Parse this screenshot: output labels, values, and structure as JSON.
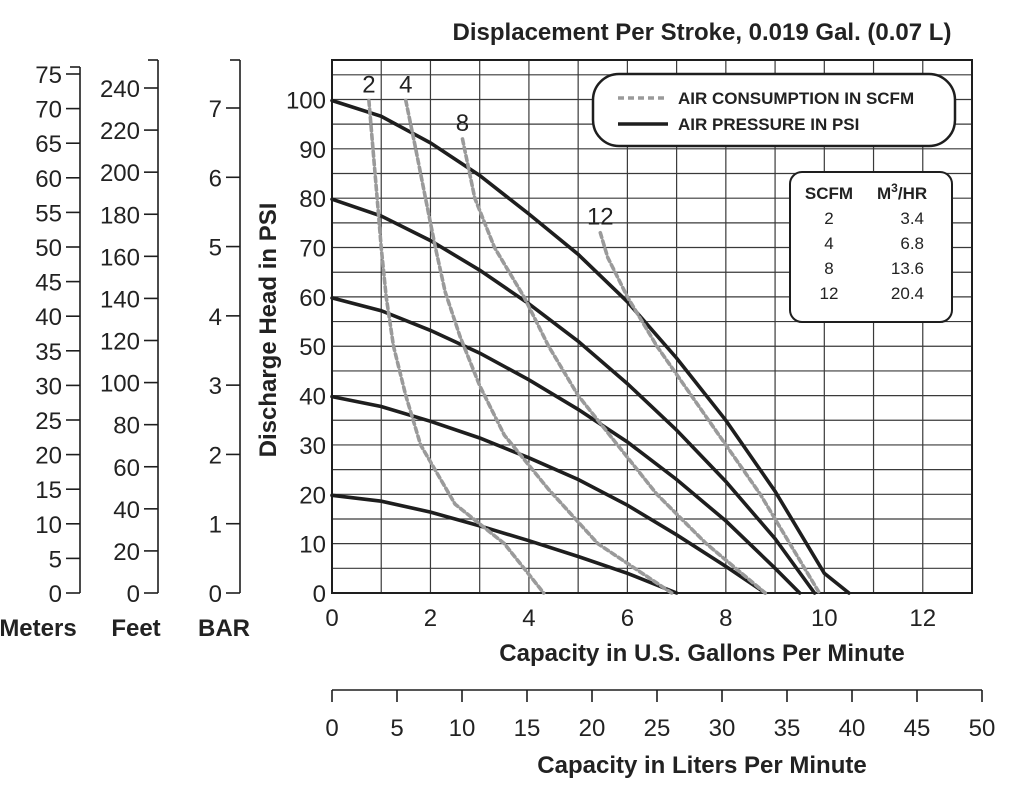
{
  "chart_data": {
    "type": "line",
    "title": "Displacement Per Stroke, 0.019 Gal. (0.07 L)",
    "xlabel": "Capacity in U.S. Gallons Per Minute",
    "ylabel": "Discharge Head in PSI",
    "xlim": [
      0,
      13
    ],
    "ylim": [
      0,
      108
    ],
    "x_ticks": [
      "0",
      "2",
      "4",
      "6",
      "8",
      "10",
      "12"
    ],
    "y_ticks": [
      "0",
      "10",
      "20",
      "30",
      "40",
      "50",
      "60",
      "70",
      "80",
      "90",
      "100"
    ],
    "grid": true,
    "series": [
      {
        "name": "20",
        "kind": "air-pressure",
        "label": "",
        "points": [
          [
            0,
            19.8
          ],
          [
            1,
            18.6
          ],
          [
            2,
            16.4
          ],
          [
            3,
            13.6
          ],
          [
            4,
            10.6
          ],
          [
            5,
            7.4
          ],
          [
            6,
            4
          ],
          [
            7,
            0
          ]
        ]
      },
      {
        "name": "40",
        "kind": "air-pressure",
        "label": "",
        "points": [
          [
            0,
            39.8
          ],
          [
            1,
            37.8
          ],
          [
            2,
            34.8
          ],
          [
            3,
            31.4
          ],
          [
            4,
            27.4
          ],
          [
            5,
            23
          ],
          [
            6,
            17.8
          ],
          [
            7,
            11.8
          ],
          [
            8,
            5.4
          ],
          [
            8.8,
            0
          ]
        ]
      },
      {
        "name": "60",
        "kind": "air-pressure",
        "label": "",
        "points": [
          [
            0,
            59.8
          ],
          [
            1,
            57.2
          ],
          [
            2,
            53.2
          ],
          [
            3,
            48.6
          ],
          [
            4,
            43.2
          ],
          [
            5,
            37.2
          ],
          [
            6,
            30.6
          ],
          [
            7,
            23
          ],
          [
            8,
            14.6
          ],
          [
            9,
            5
          ],
          [
            9.5,
            0
          ]
        ]
      },
      {
        "name": "80",
        "kind": "air-pressure",
        "label": "",
        "points": [
          [
            0,
            79.8
          ],
          [
            1,
            76.4
          ],
          [
            2,
            71.4
          ],
          [
            3,
            65.4
          ],
          [
            4,
            58.6
          ],
          [
            5,
            51
          ],
          [
            6,
            42.4
          ],
          [
            7,
            33
          ],
          [
            8,
            22.6
          ],
          [
            9,
            11
          ],
          [
            9.8,
            0
          ]
        ]
      },
      {
        "name": "100",
        "kind": "air-pressure",
        "label": "",
        "points": [
          [
            0,
            99.8
          ],
          [
            1,
            96.6
          ],
          [
            2,
            91.2
          ],
          [
            3,
            84.6
          ],
          [
            4,
            76.8
          ],
          [
            5,
            68.6
          ],
          [
            6,
            59
          ],
          [
            7,
            47.6
          ],
          [
            8,
            35
          ],
          [
            9,
            20.6
          ],
          [
            10,
            4
          ],
          [
            10.5,
            0
          ]
        ]
      },
      {
        "name": "2",
        "kind": "air-consumption",
        "label": "2",
        "points": [
          [
            0.75,
            99.8
          ],
          [
            0.85,
            88
          ],
          [
            0.95,
            76
          ],
          [
            1.0,
            70
          ],
          [
            1.1,
            60
          ],
          [
            1.25,
            50
          ],
          [
            1.5,
            40
          ],
          [
            1.8,
            30
          ],
          [
            2.5,
            18
          ],
          [
            3.5,
            10
          ],
          [
            4.3,
            0
          ]
        ]
      },
      {
        "name": "4",
        "kind": "air-consumption",
        "label": "4",
        "points": [
          [
            1.5,
            99.8
          ],
          [
            1.7,
            90
          ],
          [
            1.9,
            80
          ],
          [
            2.1,
            70
          ],
          [
            2.3,
            61
          ],
          [
            2.6,
            52
          ],
          [
            3.0,
            42
          ],
          [
            3.5,
            32
          ],
          [
            4.4,
            21
          ],
          [
            5.4,
            10
          ],
          [
            6.9,
            0
          ]
        ]
      },
      {
        "name": "8",
        "kind": "air-consumption",
        "label": "8",
        "points": [
          [
            2.65,
            92
          ],
          [
            2.9,
            80
          ],
          [
            3.3,
            70
          ],
          [
            3.9,
            60
          ],
          [
            4.4,
            50
          ],
          [
            5.0,
            40
          ],
          [
            5.8,
            30
          ],
          [
            6.6,
            20
          ],
          [
            7.6,
            10
          ],
          [
            8.8,
            0
          ]
        ]
      },
      {
        "name": "12",
        "kind": "air-consumption",
        "label": "12",
        "points": [
          [
            5.45,
            73
          ],
          [
            5.6,
            68
          ],
          [
            6.0,
            60
          ],
          [
            6.6,
            50
          ],
          [
            7.3,
            40
          ],
          [
            8.0,
            30
          ],
          [
            8.7,
            20
          ],
          [
            9.3,
            10
          ],
          [
            9.9,
            0
          ]
        ]
      }
    ],
    "left_scales": [
      {
        "unit": "Meters",
        "max": 75,
        "step": 5,
        "labels": [
          "0",
          "5",
          "10",
          "15",
          "20",
          "25",
          "30",
          "35",
          "40",
          "45",
          "50",
          "55",
          "60",
          "65",
          "70",
          "75"
        ]
      },
      {
        "unit": "Feet",
        "max": 240,
        "step": 20,
        "labels": [
          "0",
          "20",
          "40",
          "60",
          "80",
          "100",
          "120",
          "140",
          "160",
          "180",
          "200",
          "220",
          "240"
        ]
      },
      {
        "unit": "BAR",
        "max": 7,
        "step": 1,
        "labels": [
          "0",
          "1",
          "2",
          "3",
          "4",
          "5",
          "6",
          "7"
        ]
      }
    ],
    "secondary_x": {
      "label": "Capacity in Liters Per Minute",
      "min": 0,
      "max": 50,
      "step": 5,
      "labels": [
        "0",
        "5",
        "10",
        "15",
        "20",
        "25",
        "30",
        "35",
        "40",
        "45",
        "50"
      ]
    },
    "legend": {
      "placement": "top-right",
      "items": [
        {
          "label": "AIR CONSUMPTION IN SCFM",
          "style": "dashed-gray"
        },
        {
          "label": "AIR PRESSURE IN PSI",
          "style": "solid-black"
        }
      ]
    },
    "conversion_table": {
      "headers": [
        "SCFM",
        "M",
        "3",
        "/HR"
      ],
      "rows": [
        [
          "2",
          "3.4"
        ],
        [
          "4",
          "6.8"
        ],
        [
          "8",
          "13.6"
        ],
        [
          "12",
          "20.4"
        ]
      ]
    },
    "colors": {
      "pressure": "#1e1e1e",
      "consumption": "#9a9a9a",
      "grid": "#3a3a3a",
      "text": "#222222"
    }
  }
}
